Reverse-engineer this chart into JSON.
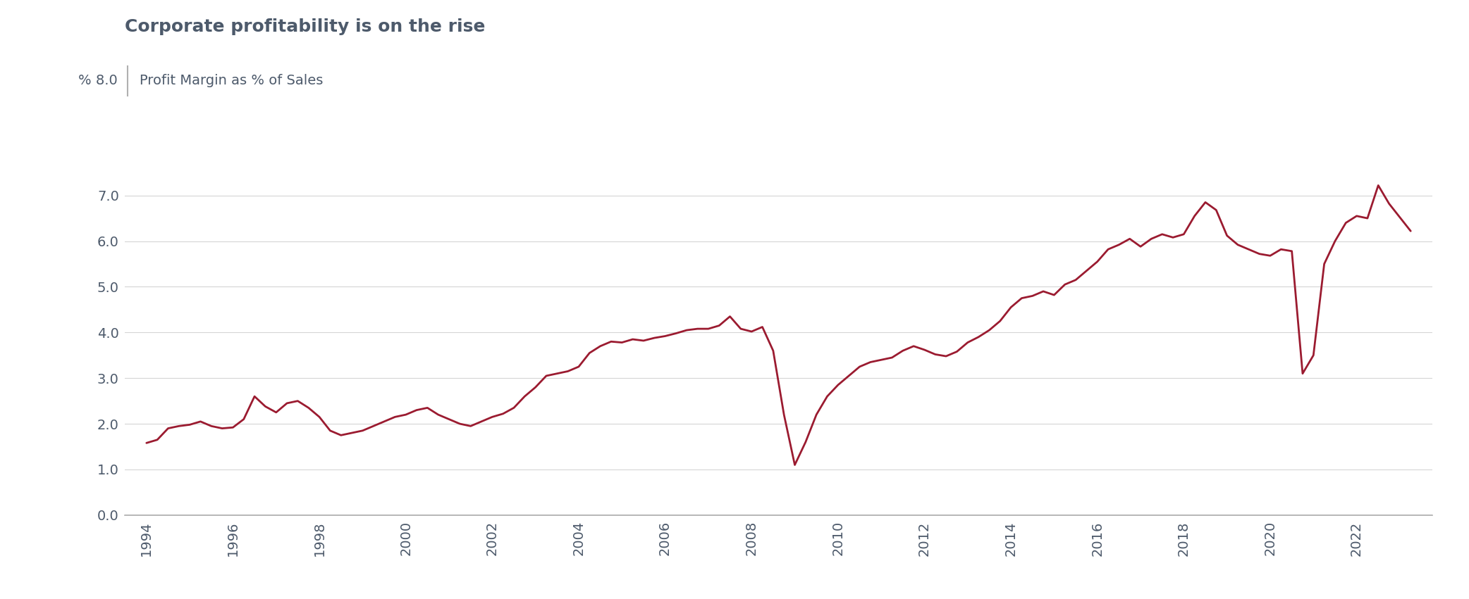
{
  "title": "Corporate profitability is on the rise",
  "ylabel_top": "% 8.0",
  "legend_label": "Profit Margin as % of Sales",
  "line_color": "#9b1b30",
  "background_color": "#ffffff",
  "axis_color": "#b0b0b0",
  "text_color": "#4d5a6b",
  "ylim": [
    0.0,
    8.0
  ],
  "yticks": [
    0.0,
    1.0,
    2.0,
    3.0,
    4.0,
    5.0,
    6.0,
    7.0
  ],
  "xtick_years": [
    "1994",
    "1996",
    "1998",
    "2000",
    "2002",
    "2004",
    "2006",
    "2008",
    "2010",
    "2012",
    "2014",
    "2016",
    "2018",
    "2020",
    "2022"
  ],
  "x": [
    1994.0,
    1994.25,
    1994.5,
    1994.75,
    1995.0,
    1995.25,
    1995.5,
    1995.75,
    1996.0,
    1996.25,
    1996.5,
    1996.75,
    1997.0,
    1997.25,
    1997.5,
    1997.75,
    1998.0,
    1998.25,
    1998.5,
    1998.75,
    1999.0,
    1999.25,
    1999.5,
    1999.75,
    2000.0,
    2000.25,
    2000.5,
    2000.75,
    2001.0,
    2001.25,
    2001.5,
    2001.75,
    2002.0,
    2002.25,
    2002.5,
    2002.75,
    2003.0,
    2003.25,
    2003.5,
    2003.75,
    2004.0,
    2004.25,
    2004.5,
    2004.75,
    2005.0,
    2005.25,
    2005.5,
    2005.75,
    2006.0,
    2006.25,
    2006.5,
    2006.75,
    2007.0,
    2007.25,
    2007.5,
    2007.75,
    2008.0,
    2008.25,
    2008.5,
    2008.75,
    2009.0,
    2009.25,
    2009.5,
    2009.75,
    2010.0,
    2010.25,
    2010.5,
    2010.75,
    2011.0,
    2011.25,
    2011.5,
    2011.75,
    2012.0,
    2012.25,
    2012.5,
    2012.75,
    2013.0,
    2013.25,
    2013.5,
    2013.75,
    2014.0,
    2014.25,
    2014.5,
    2014.75,
    2015.0,
    2015.25,
    2015.5,
    2015.75,
    2016.0,
    2016.25,
    2016.5,
    2016.75,
    2017.0,
    2017.25,
    2017.5,
    2017.75,
    2018.0,
    2018.25,
    2018.5,
    2018.75,
    2019.0,
    2019.25,
    2019.5,
    2019.75,
    2020.0,
    2020.25,
    2020.5,
    2020.75,
    2021.0,
    2021.25,
    2021.5,
    2021.75,
    2022.0,
    2022.25,
    2022.5,
    2022.75,
    2023.0,
    2023.25
  ],
  "y": [
    1.58,
    1.65,
    1.9,
    1.95,
    1.98,
    2.05,
    1.95,
    1.9,
    1.92,
    2.1,
    2.6,
    2.38,
    2.25,
    2.45,
    2.5,
    2.35,
    2.15,
    1.85,
    1.75,
    1.8,
    1.85,
    1.95,
    2.05,
    2.15,
    2.2,
    2.3,
    2.35,
    2.2,
    2.1,
    2.0,
    1.95,
    2.05,
    2.15,
    2.22,
    2.35,
    2.6,
    2.8,
    3.05,
    3.1,
    3.15,
    3.25,
    3.55,
    3.7,
    3.8,
    3.78,
    3.85,
    3.82,
    3.88,
    3.92,
    3.98,
    4.05,
    4.08,
    4.08,
    4.15,
    4.35,
    4.08,
    4.02,
    4.12,
    3.6,
    2.2,
    1.1,
    1.6,
    2.2,
    2.6,
    2.85,
    3.05,
    3.25,
    3.35,
    3.4,
    3.45,
    3.6,
    3.7,
    3.62,
    3.52,
    3.48,
    3.58,
    3.78,
    3.9,
    4.05,
    4.25,
    4.55,
    4.75,
    4.8,
    4.9,
    4.82,
    5.05,
    5.15,
    5.35,
    5.55,
    5.82,
    5.92,
    6.05,
    5.88,
    6.05,
    6.15,
    6.08,
    6.15,
    6.55,
    6.85,
    6.68,
    6.12,
    5.92,
    5.82,
    5.72,
    5.68,
    5.82,
    5.78,
    3.1,
    3.5,
    5.5,
    6.0,
    6.4,
    6.55,
    6.5,
    7.22,
    6.82,
    6.52,
    6.22
  ]
}
